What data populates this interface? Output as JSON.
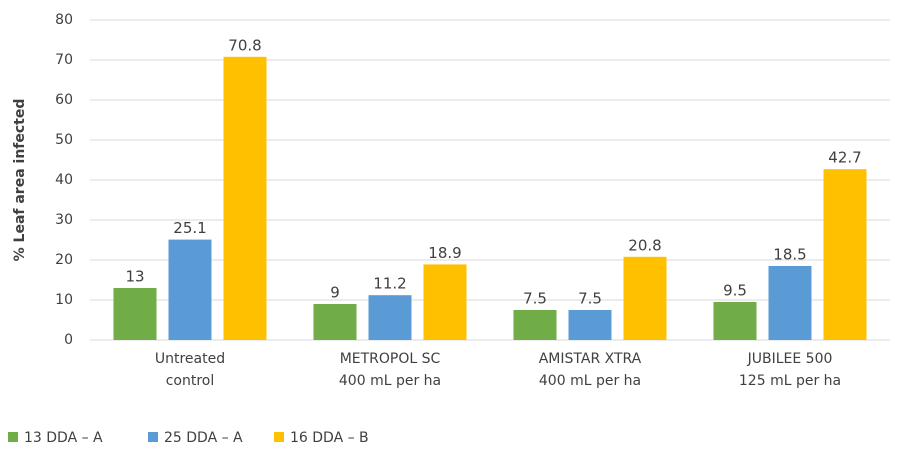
{
  "chart_data": {
    "type": "bar",
    "y_label": "% Leaf area infected",
    "categories": [
      [
        "Untreated",
        "control"
      ],
      [
        "METROPOL SC",
        "400 mL per ha"
      ],
      [
        "AMISTAR XTRA",
        "400 mL per ha"
      ],
      [
        "JUBILEE 500",
        "125 mL per ha"
      ]
    ],
    "series": [
      {
        "name": "13 DDA – A",
        "color": "#70ad47",
        "values": [
          13,
          9,
          7.5,
          9.5
        ]
      },
      {
        "name": "25 DDA – A",
        "color": "#5b9bd5",
        "values": [
          25.1,
          11.2,
          7.5,
          18.5
        ]
      },
      {
        "name": "16 DDA – B",
        "color": "#ffc000",
        "values": [
          70.8,
          18.9,
          20.8,
          42.7
        ]
      }
    ],
    "ylim": [
      0,
      80
    ],
    "yticks": [
      0,
      10,
      20,
      30,
      40,
      50,
      60,
      70,
      80
    ],
    "grid": true,
    "legend": "bottom-left"
  }
}
